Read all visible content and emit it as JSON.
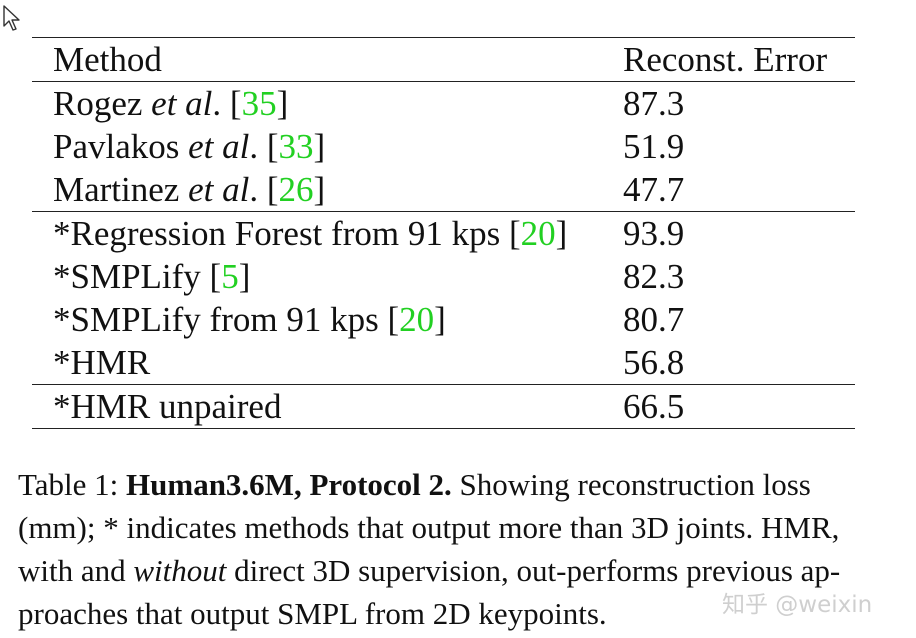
{
  "table": {
    "header": {
      "method": "Method",
      "error": "Reconst. Error"
    },
    "groups": [
      [
        {
          "name": "Rogez ",
          "etal": "et al",
          "suffix": ". [",
          "cite": "35",
          "close": "]",
          "value": "87.3",
          "bold": false
        },
        {
          "name": "Pavlakos ",
          "etal": "et al",
          "suffix": ". [",
          "cite": "33",
          "close": "]",
          "value": "51.9",
          "bold": false
        },
        {
          "name": "Martinez ",
          "etal": "et al",
          "suffix": ". [",
          "cite": "26",
          "close": "]",
          "value": "47.7",
          "bold": true
        }
      ],
      [
        {
          "name": "*Regression Forest from 91 kps [",
          "cite": "20",
          "close": "]",
          "value": "93.9",
          "bold": false
        },
        {
          "name": "*SMPLify [",
          "cite": "5",
          "close": "]",
          "value": "82.3",
          "bold": false
        },
        {
          "name": "*SMPLify from 91 kps [",
          "cite": "20",
          "close": "]",
          "value": "80.7",
          "bold": false
        },
        {
          "name": "*HMR",
          "value": "56.8",
          "bold": true
        }
      ],
      [
        {
          "name": "*HMR unpaired",
          "value": "66.5",
          "bold": false
        }
      ]
    ]
  },
  "caption": {
    "label": "Table 1: ",
    "bold_title": "Human3.6M, Protocol 2.",
    "text_1": " Showing reconstruction loss (mm); * indicates methods that output more than 3D joints. HMR, with and ",
    "italic": "without",
    "text_2": " direct 3D supervision, out-performs previous ap-proaches that output SMPL from 2D keypoints."
  },
  "watermark": "知乎 @weixin",
  "colors": {
    "citation": "#22d022",
    "text": "#111111",
    "watermark": "#cfcfcf"
  },
  "icons": {
    "cursor": "mouse-pointer-icon"
  }
}
